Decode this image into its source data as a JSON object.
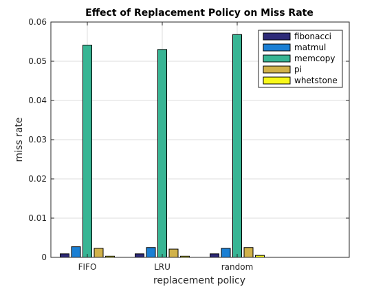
{
  "chart_data": {
    "type": "bar",
    "title": "Effect of Replacement Policy on Miss Rate",
    "xlabel": "replacement policy",
    "ylabel": "miss rate",
    "categories": [
      "FIFO",
      "LRU",
      "random"
    ],
    "ylim": [
      0,
      0.06
    ],
    "yticks": [
      "0",
      "0.01",
      "0.02",
      "0.03",
      "0.04",
      "0.05",
      "0.06"
    ],
    "grid": true,
    "legend_position": "top-right",
    "series": [
      {
        "name": "fibonacci",
        "color": "#2e2a78",
        "values": [
          0.0009,
          0.0009,
          0.0009
        ]
      },
      {
        "name": "matmul",
        "color": "#1a7fd4",
        "values": [
          0.0027,
          0.0025,
          0.0023
        ]
      },
      {
        "name": "memcopy",
        "color": "#38b594",
        "values": [
          0.0541,
          0.053,
          0.0568
        ]
      },
      {
        "name": "pi",
        "color": "#d1b24a",
        "values": [
          0.0023,
          0.0021,
          0.0025
        ]
      },
      {
        "name": "whetstone",
        "color": "#f8f81a",
        "values": [
          0.0003,
          0.0003,
          0.0005
        ]
      }
    ]
  }
}
